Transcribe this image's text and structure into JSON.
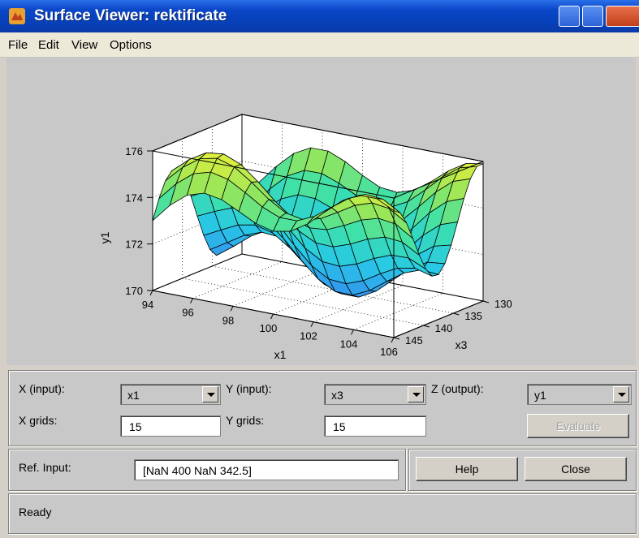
{
  "window": {
    "title": "Surface Viewer: rektificate"
  },
  "menu": [
    "File",
    "Edit",
    "View",
    "Options"
  ],
  "colors": {
    "accent": "#0740b8",
    "panel": "#c8c8c8"
  },
  "chart_data": {
    "type": "surface",
    "xlabel": "x1",
    "ylabel": "x3",
    "zlabel": "y1",
    "x_ticks": [
      "94",
      "96",
      "98",
      "100",
      "102",
      "104",
      "106"
    ],
    "y_ticks": [
      "130",
      "135",
      "140",
      "145"
    ],
    "z_ticks": [
      "170",
      "172",
      "174",
      "176"
    ],
    "xlim": [
      94,
      106
    ],
    "ylim": [
      130,
      145
    ],
    "zlim": [
      170,
      176
    ],
    "grid": true,
    "grid_points": 15
  },
  "controls": {
    "x_input_label": "X (input):",
    "x_input_value": "x1",
    "y_input_label": "Y (input):",
    "y_input_value": "x3",
    "z_output_label": "Z (output):",
    "z_output_value": "y1",
    "x_grids_label": "X grids:",
    "x_grids_value": "15",
    "y_grids_label": "Y grids:",
    "y_grids_value": "15",
    "evaluate_label": "Evaluate",
    "ref_input_label": "Ref. Input:",
    "ref_input_value": "[NaN 400 NaN 342.5]",
    "help_label": "Help",
    "close_label": "Close",
    "status": "Ready"
  }
}
